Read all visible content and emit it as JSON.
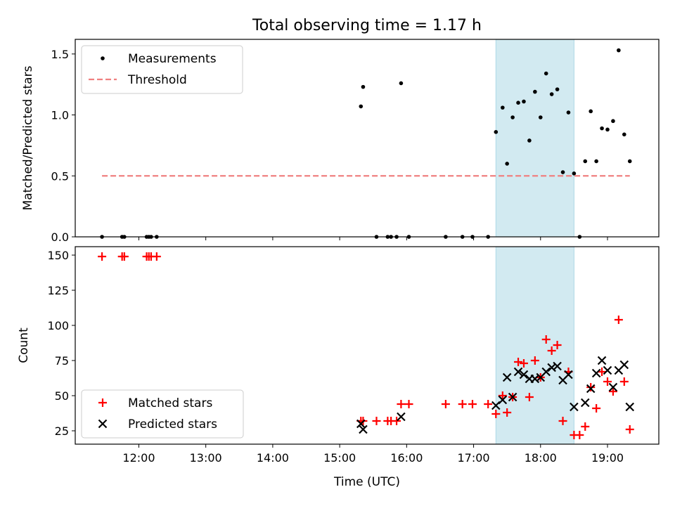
{
  "figure": {
    "title": "Total observing time = 1.17 h",
    "xlabel": "Time (UTC)"
  },
  "colors": {
    "measurements": "#000000",
    "threshold": "#f08080",
    "matched": "#ff0000",
    "predicted": "#000000",
    "shade": "#add8e6"
  },
  "chart_data": [
    {
      "type": "scatter",
      "panel": "top",
      "ylabel": "Matched/Predicted stars",
      "xlim": [
        "11:03",
        "19:46"
      ],
      "ylim": [
        0,
        1.62
      ],
      "yticks": [
        0.0,
        0.5,
        1.0,
        1.5
      ],
      "ytick_labels": [
        "0.0",
        "0.5",
        "1.0",
        "1.5"
      ],
      "shaded_span": [
        "17:20",
        "18:30"
      ],
      "legend": {
        "placement": "top-left",
        "entries": [
          "Measurements",
          "Threshold"
        ]
      },
      "series": [
        {
          "name": "Measurements",
          "marker": "dot",
          "points": [
            [
              "11:27",
              0
            ],
            [
              "11:45",
              0
            ],
            [
              "11:47",
              0
            ],
            [
              "12:07",
              0
            ],
            [
              "12:09",
              0
            ],
            [
              "12:11",
              0
            ],
            [
              "12:16",
              0
            ],
            [
              "15:19",
              1.07
            ],
            [
              "15:21",
              1.23
            ],
            [
              "15:33",
              0
            ],
            [
              "15:43",
              0
            ],
            [
              "15:46",
              0
            ],
            [
              "15:51",
              0
            ],
            [
              "15:55",
              1.26
            ],
            [
              "16:02",
              0
            ],
            [
              "16:35",
              0
            ],
            [
              "16:50",
              0
            ],
            [
              "16:59",
              0
            ],
            [
              "17:13",
              0
            ],
            [
              "17:20",
              0.86
            ],
            [
              "17:26",
              1.06
            ],
            [
              "17:30",
              0.6
            ],
            [
              "17:35",
              0.98
            ],
            [
              "17:40",
              1.1
            ],
            [
              "17:45",
              1.11
            ],
            [
              "17:50",
              0.79
            ],
            [
              "17:55",
              1.19
            ],
            [
              "18:00",
              0.98
            ],
            [
              "18:05",
              1.34
            ],
            [
              "18:10",
              1.17
            ],
            [
              "18:15",
              1.21
            ],
            [
              "18:20",
              0.53
            ],
            [
              "18:25",
              1.02
            ],
            [
              "18:30",
              0.52
            ],
            [
              "18:35",
              0
            ],
            [
              "18:40",
              0.62
            ],
            [
              "18:45",
              1.03
            ],
            [
              "18:50",
              0.62
            ],
            [
              "18:55",
              0.89
            ],
            [
              "19:00",
              0.88
            ],
            [
              "19:05",
              0.95
            ],
            [
              "19:10",
              1.53
            ],
            [
              "19:15",
              0.84
            ],
            [
              "19:20",
              0.62
            ]
          ]
        },
        {
          "name": "Threshold",
          "style": "dashed",
          "points": [
            [
              "11:27",
              0.5
            ],
            [
              "19:20",
              0.5
            ]
          ]
        }
      ]
    },
    {
      "type": "scatter",
      "panel": "bottom",
      "ylabel": "Count",
      "xlim": [
        "11:03",
        "19:46"
      ],
      "ylim": [
        15.5,
        156
      ],
      "yticks": [
        25,
        50,
        75,
        100,
        125,
        150
      ],
      "ytick_labels": [
        "25",
        "50",
        "75",
        "100",
        "125",
        "150"
      ],
      "xticks": [
        "12:00",
        "13:00",
        "14:00",
        "15:00",
        "16:00",
        "17:00",
        "18:00",
        "19:00"
      ],
      "xtick_labels": [
        "12:00",
        "13:00",
        "14:00",
        "15:00",
        "16:00",
        "17:00",
        "18:00",
        "19:00"
      ],
      "shaded_span": [
        "17:20",
        "18:30"
      ],
      "legend": {
        "placement": "bottom-left",
        "entries": [
          "Matched stars",
          "Predicted stars"
        ]
      },
      "series": [
        {
          "name": "Matched stars",
          "marker": "plus",
          "points": [
            [
              "11:27",
              149
            ],
            [
              "11:45",
              149
            ],
            [
              "11:47",
              149
            ],
            [
              "12:07",
              149
            ],
            [
              "12:09",
              149
            ],
            [
              "12:11",
              149
            ],
            [
              "12:16",
              149
            ],
            [
              "15:19",
              32
            ],
            [
              "15:21",
              32
            ],
            [
              "15:33",
              32
            ],
            [
              "15:43",
              32
            ],
            [
              "15:46",
              32
            ],
            [
              "15:51",
              32
            ],
            [
              "15:55",
              44
            ],
            [
              "16:02",
              44
            ],
            [
              "16:35",
              44
            ],
            [
              "16:50",
              44
            ],
            [
              "16:59",
              44
            ],
            [
              "17:13",
              44
            ],
            [
              "17:20",
              37
            ],
            [
              "17:26",
              50
            ],
            [
              "17:30",
              38
            ],
            [
              "17:35",
              49
            ],
            [
              "17:40",
              74
            ],
            [
              "17:45",
              73
            ],
            [
              "17:50",
              49
            ],
            [
              "17:55",
              75
            ],
            [
              "18:00",
              63
            ],
            [
              "18:05",
              90
            ],
            [
              "18:10",
              82
            ],
            [
              "18:15",
              86
            ],
            [
              "18:20",
              32
            ],
            [
              "18:25",
              67
            ],
            [
              "18:30",
              22
            ],
            [
              "18:35",
              22
            ],
            [
              "18:40",
              28
            ],
            [
              "18:45",
              56
            ],
            [
              "18:50",
              41
            ],
            [
              "18:55",
              67
            ],
            [
              "19:00",
              60
            ],
            [
              "19:05",
              53
            ],
            [
              "19:10",
              104
            ],
            [
              "19:15",
              60
            ],
            [
              "19:20",
              26
            ]
          ]
        },
        {
          "name": "Predicted stars",
          "marker": "x",
          "points": [
            [
              "15:19",
              30
            ],
            [
              "15:21",
              26
            ],
            [
              "15:55",
              35
            ],
            [
              "17:20",
              43
            ],
            [
              "17:26",
              47
            ],
            [
              "17:30",
              63
            ],
            [
              "17:35",
              49
            ],
            [
              "17:40",
              67
            ],
            [
              "17:45",
              65
            ],
            [
              "17:50",
              62
            ],
            [
              "17:55",
              62
            ],
            [
              "18:00",
              63
            ],
            [
              "18:05",
              67
            ],
            [
              "18:10",
              70
            ],
            [
              "18:15",
              71
            ],
            [
              "18:20",
              61
            ],
            [
              "18:25",
              65
            ],
            [
              "18:30",
              42
            ],
            [
              "18:40",
              45
            ],
            [
              "18:45",
              55
            ],
            [
              "18:50",
              66
            ],
            [
              "18:55",
              75
            ],
            [
              "19:00",
              68
            ],
            [
              "19:05",
              56
            ],
            [
              "19:10",
              68
            ],
            [
              "19:15",
              72
            ],
            [
              "19:20",
              42
            ]
          ]
        }
      ]
    }
  ]
}
